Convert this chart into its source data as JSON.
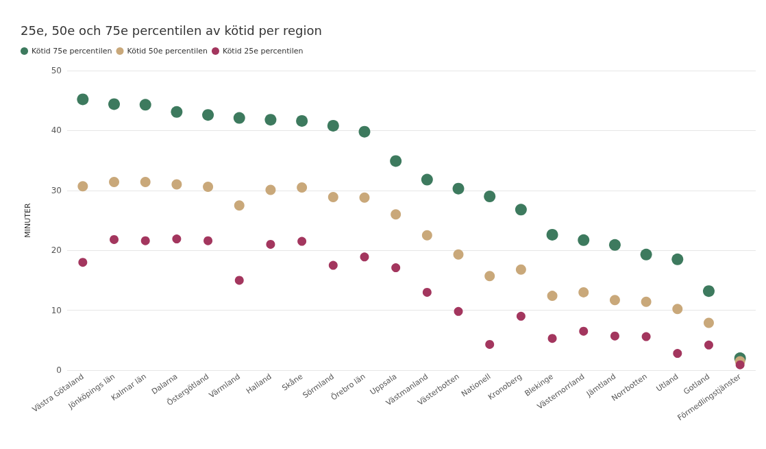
{
  "chart_data": {
    "type": "scatter",
    "title": "25e, 50e och 75e percentilen av kötid per region",
    "ylabel": "MINUTER",
    "categories": [
      "Västra Götaland",
      "Jönköpings län",
      "Kalmar län",
      "Dalarna",
      "Östergötland",
      "Värmland",
      "Halland",
      "Skåne",
      "Sörmland",
      "Örebro län",
      "Uppsala",
      "Västmanland",
      "Västerbotten",
      "Nationell",
      "Kronoberg",
      "Blekinge",
      "Västernorrland",
      "Jämtland",
      "Norrbotten",
      "Utland",
      "Gotland",
      "Förmedlingstjänster"
    ],
    "series": [
      {
        "name": "Kötid 75e percentilen",
        "color": "#3d7a5e",
        "values": [
          45.2,
          44.4,
          44.3,
          43.1,
          42.6,
          42.1,
          41.8,
          41.6,
          40.8,
          39.8,
          34.9,
          31.8,
          30.3,
          29.0,
          26.8,
          22.6,
          21.7,
          20.9,
          19.3,
          18.5,
          13.2,
          2.0
        ]
      },
      {
        "name": "Kötid 50e percentilen",
        "color": "#c9a87a",
        "values": [
          30.7,
          31.4,
          31.4,
          31.0,
          30.6,
          27.5,
          30.1,
          30.5,
          28.9,
          28.8,
          26.0,
          22.5,
          19.3,
          15.7,
          16.8,
          12.4,
          13.0,
          11.7,
          11.4,
          10.2,
          7.9,
          1.5
        ]
      },
      {
        "name": "Kötid 25e percentilen",
        "color": "#a3365e",
        "values": [
          18.0,
          21.8,
          21.6,
          21.9,
          21.6,
          15.0,
          21.0,
          21.5,
          17.5,
          18.9,
          17.1,
          13.0,
          9.8,
          4.3,
          9.0,
          5.3,
          6.5,
          5.7,
          5.6,
          2.8,
          4.2,
          0.9
        ]
      }
    ],
    "ylim": [
      0,
      50
    ],
    "yticks": [
      0,
      10,
      20,
      30,
      40,
      50
    ],
    "grid": "y",
    "legend": "top left",
    "marker": "circle"
  }
}
